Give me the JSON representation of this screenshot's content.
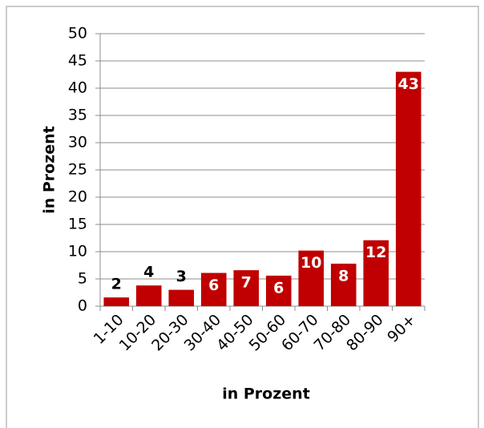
{
  "chart_data": {
    "type": "bar",
    "categories": [
      "1-10",
      "10-20",
      "20-30",
      "30-40",
      "40-50",
      "50-60",
      "60-70",
      "70-80",
      "80-90",
      "90+"
    ],
    "values": [
      1.6,
      3.8,
      3,
      6.1,
      6.6,
      5.6,
      10.2,
      7.8,
      12.1,
      43
    ],
    "value_labels": [
      "2",
      "4",
      "3",
      "6",
      "7",
      "6",
      "10",
      "8",
      "12",
      "43"
    ],
    "color": "#c00000",
    "ylim": [
      0,
      50
    ],
    "yticks": [
      0,
      5,
      10,
      15,
      20,
      25,
      30,
      35,
      40,
      45,
      50
    ],
    "grid": true,
    "y_label": "in Prozent",
    "x_label": "in Prozent"
  }
}
